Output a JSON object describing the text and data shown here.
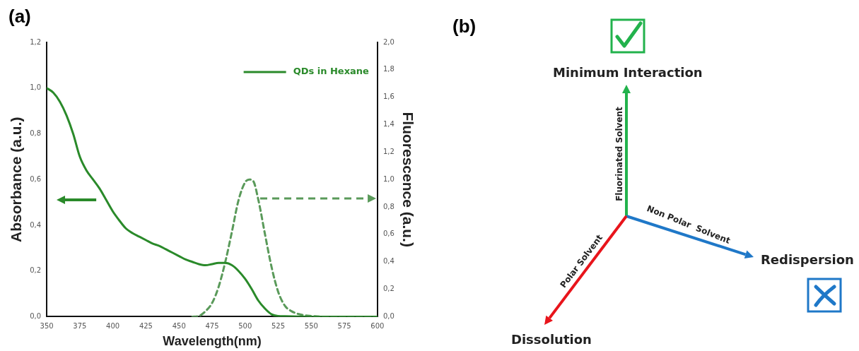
{
  "chart_data": [
    {
      "type": "line",
      "title": "(a)",
      "xlabel": "Wavelength(nm)",
      "ylabel": "Absorbance (a.u.)",
      "y2label": "Fluorescence (a.u.)",
      "xlim": [
        350,
        600
      ],
      "xticks": [
        350,
        375,
        400,
        425,
        450,
        475,
        500,
        525,
        550,
        575,
        600
      ],
      "ylim": [
        0,
        1.2
      ],
      "yticks": [
        {
          "value": 0,
          "label": "0,0"
        },
        {
          "value": 0.2,
          "label": "0,2"
        },
        {
          "value": 0.4,
          "label": "0,4"
        },
        {
          "value": 0.6,
          "label": "0,6"
        },
        {
          "value": 0.8,
          "label": "0,8"
        },
        {
          "value": 1,
          "label": "1,0"
        },
        {
          "value": 1.2,
          "label": "1,2"
        }
      ],
      "y2lim": [
        0,
        2
      ],
      "y2ticks": [
        {
          "value": 0,
          "label": "0,0"
        },
        {
          "value": 0.2,
          "label": "0,2"
        },
        {
          "value": 0.4,
          "label": "0,4"
        },
        {
          "value": 0.6,
          "label": "0,6"
        },
        {
          "value": 0.8,
          "label": "0,8"
        },
        {
          "value": 1,
          "label": "1,0"
        },
        {
          "value": 1.2,
          "label": "1,2"
        },
        {
          "value": 1.4,
          "label": "1,4"
        },
        {
          "value": 1.6,
          "label": "1,6"
        },
        {
          "value": 1.8,
          "label": "1,8"
        },
        {
          "value": 2,
          "label": "2,0"
        }
      ],
      "grid": false,
      "legend": "top right",
      "marker": "none",
      "series": [
        {
          "name": "QDs in Hexane",
          "color": "#2a8a2a",
          "line_style": "solid",
          "x": [
            350,
            355,
            360,
            365,
            370,
            375,
            380,
            385,
            390,
            395,
            400,
            405,
            410,
            415,
            420,
            425,
            430,
            435,
            440,
            445,
            450,
            455,
            460,
            465,
            470,
            475,
            480,
            485,
            490,
            495,
            500,
            505,
            510,
            515,
            520,
            525,
            530,
            550,
            600
          ],
          "values": [
            1.0,
            0.98,
            0.94,
            0.88,
            0.8,
            0.7,
            0.64,
            0.6,
            0.56,
            0.51,
            0.46,
            0.42,
            0.385,
            0.365,
            0.35,
            0.335,
            0.32,
            0.31,
            0.295,
            0.28,
            0.265,
            0.25,
            0.24,
            0.23,
            0.225,
            0.23,
            0.235,
            0.235,
            0.225,
            0.2,
            0.165,
            0.12,
            0.07,
            0.035,
            0.01,
            0.003,
            0.002,
            0,
            0
          ]
        },
        {
          "color": "#5a9a5a",
          "line_style": "dashed",
          "axis": "y2",
          "x": [
            460,
            465,
            470,
            475,
            480,
            485,
            490,
            495,
            500,
            503,
            506,
            510,
            515,
            520,
            525,
            530,
            535,
            540,
            550,
            560,
            600
          ],
          "values": [
            0,
            0.005,
            0.04,
            0.1,
            0.22,
            0.4,
            0.62,
            0.85,
            0.98,
            1.0,
            0.99,
            0.85,
            0.6,
            0.36,
            0.18,
            0.08,
            0.04,
            0.02,
            0.005,
            0,
            0
          ]
        }
      ]
    },
    {
      "type": "other",
      "title": "(b)",
      "annotations": [
        "Minimum Interaction",
        "Fluorinated Solvent",
        "Non Polar  Solvent",
        "Redispersion",
        "Polar Solvent",
        "Dissolution"
      ]
    }
  ]
}
